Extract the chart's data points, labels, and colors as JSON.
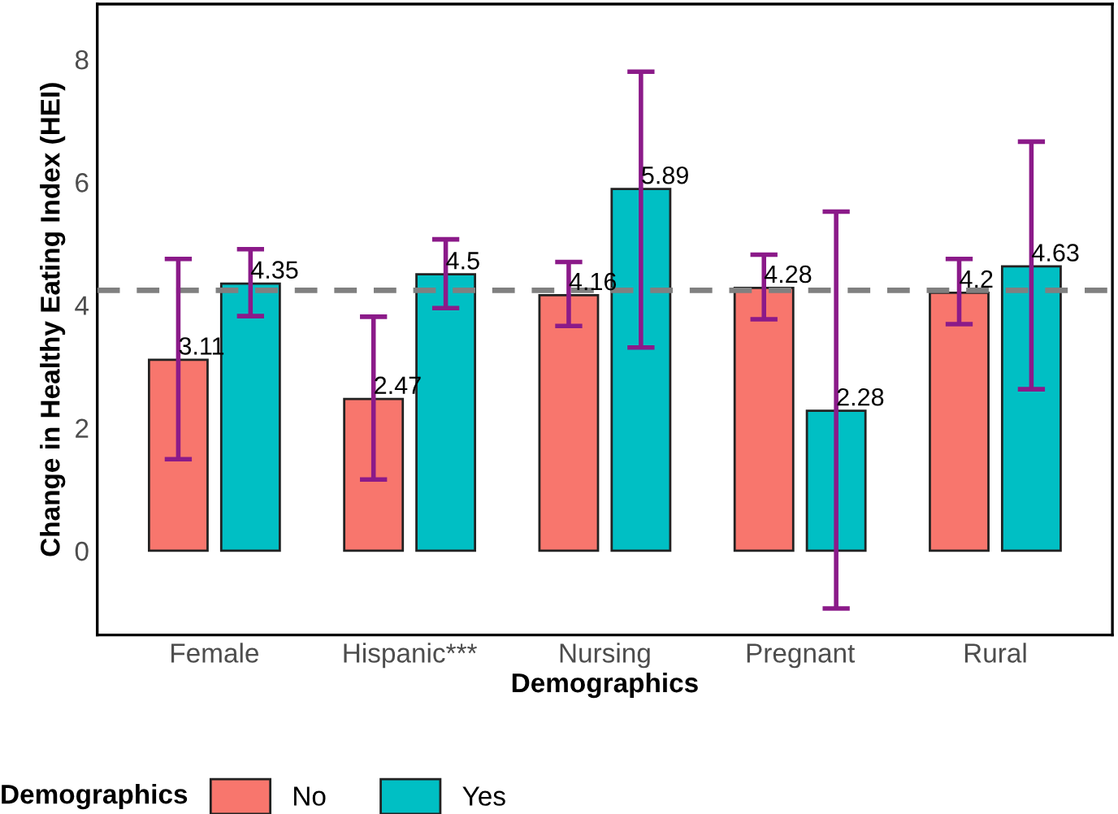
{
  "chart_data": {
    "type": "bar",
    "xlabel": "Demographics",
    "ylabel": "Change in Healthy Eating Index (HEI)",
    "legend_title": "Demographics",
    "categories": [
      "Female",
      "Hispanic***",
      "Nursing",
      "Pregnant",
      "Rural"
    ],
    "series": [
      {
        "name": "No",
        "color": "#f8766d",
        "values": [
          3.11,
          2.47,
          4.16,
          4.28,
          4.2
        ],
        "errors": [
          [
            1.49,
            4.75
          ],
          [
            1.16,
            3.81
          ],
          [
            3.66,
            4.7
          ],
          [
            3.77,
            4.82
          ],
          [
            3.69,
            4.75
          ]
        ]
      },
      {
        "name": "Yes",
        "color": "#00bfc4",
        "values": [
          4.35,
          4.5,
          5.89,
          2.28,
          4.63
        ],
        "errors": [
          [
            3.82,
            4.91
          ],
          [
            3.95,
            5.07
          ],
          [
            3.31,
            7.8
          ],
          [
            -0.94,
            5.52
          ],
          [
            2.63,
            6.66
          ]
        ]
      }
    ],
    "ylim": [
      -1.37,
      8.9
    ],
    "yticks": [
      0,
      2,
      4,
      6,
      8
    ],
    "ref_lines": [
      {
        "axis": "y",
        "value": 4.24,
        "color": "#808080",
        "line_style": "dashed"
      }
    ],
    "data_labels": true,
    "legend": "bottom",
    "grid": false
  }
}
